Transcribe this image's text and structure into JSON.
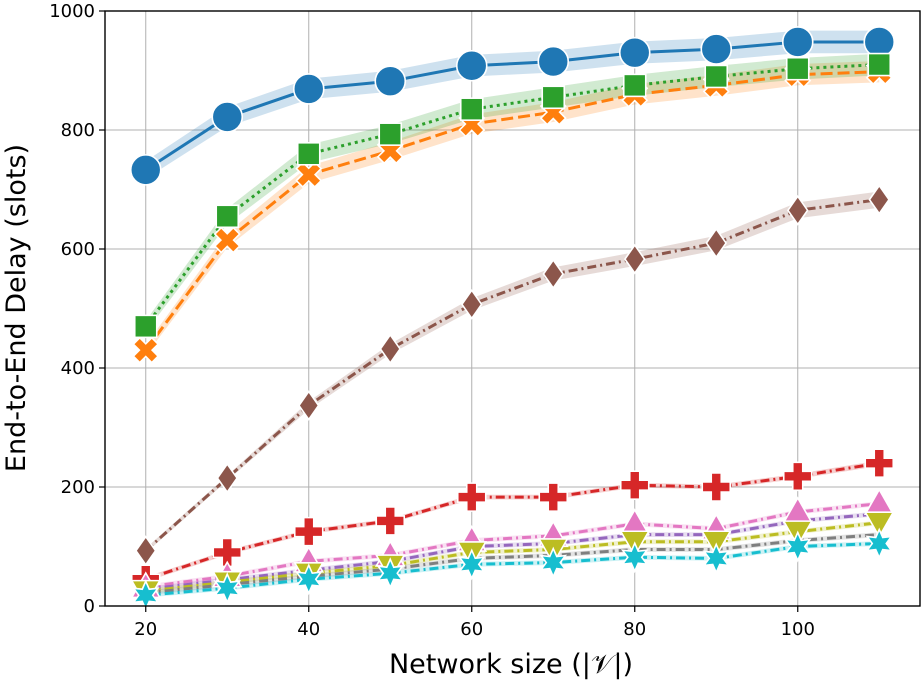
{
  "chart_data": {
    "type": "line",
    "title": "",
    "xlabel": "Network size (|𝒱|)",
    "ylabel": "End-to-End Delay (slots)",
    "xlim": [
      15,
      115
    ],
    "ylim": [
      0,
      1000
    ],
    "x_ticks": [
      20,
      40,
      60,
      80,
      100
    ],
    "y_ticks": [
      0,
      200,
      400,
      600,
      800,
      1000
    ],
    "grid": true,
    "legend": "none",
    "x": [
      20,
      30,
      40,
      50,
      60,
      70,
      80,
      90,
      100,
      110
    ],
    "series": [
      {
        "color": "#1f77b4",
        "marker": "circle",
        "dash": "solid",
        "values": [
          733,
          822,
          869,
          882,
          908,
          915,
          930,
          936,
          948,
          948
        ]
      },
      {
        "color": "#ff7f0e",
        "marker": "x",
        "dash": "dashed",
        "values": [
          430,
          615,
          725,
          765,
          810,
          830,
          860,
          875,
          893,
          898
        ]
      },
      {
        "color": "#2ca02c",
        "marker": "square",
        "dash": "dotted",
        "values": [
          470,
          655,
          760,
          793,
          835,
          855,
          875,
          890,
          903,
          910
        ]
      },
      {
        "color": "#8c564b",
        "marker": "diamond",
        "dash": "dashdot",
        "values": [
          93,
          215,
          337,
          432,
          507,
          558,
          583,
          610,
          665,
          683
        ]
      },
      {
        "color": "#d62728",
        "marker": "plus",
        "dash": "dashdot",
        "values": [
          45,
          90,
          125,
          143,
          183,
          183,
          203,
          200,
          218,
          240
        ]
      },
      {
        "color": "#e377c2",
        "marker": "triangle-up",
        "dash": "dashdot",
        "values": [
          32,
          50,
          75,
          85,
          110,
          118,
          138,
          130,
          158,
          172
        ]
      },
      {
        "color": "#9467bd",
        "marker": "none",
        "dash": "dashdot",
        "values": [
          28,
          44,
          60,
          75,
          100,
          105,
          120,
          120,
          143,
          155
        ]
      },
      {
        "color": "#bcbd22",
        "marker": "triangle-down",
        "dash": "dashdot",
        "values": [
          25,
          40,
          55,
          68,
          90,
          95,
          108,
          108,
          125,
          140
        ]
      },
      {
        "color": "#7f7f7f",
        "marker": "none",
        "dash": "dashdot",
        "values": [
          22,
          36,
          50,
          62,
          80,
          85,
          95,
          95,
          110,
          120
        ]
      },
      {
        "color": "#17becf",
        "marker": "star",
        "dash": "dashdot",
        "values": [
          18,
          30,
          45,
          55,
          70,
          73,
          82,
          80,
          100,
          105
        ]
      }
    ]
  }
}
